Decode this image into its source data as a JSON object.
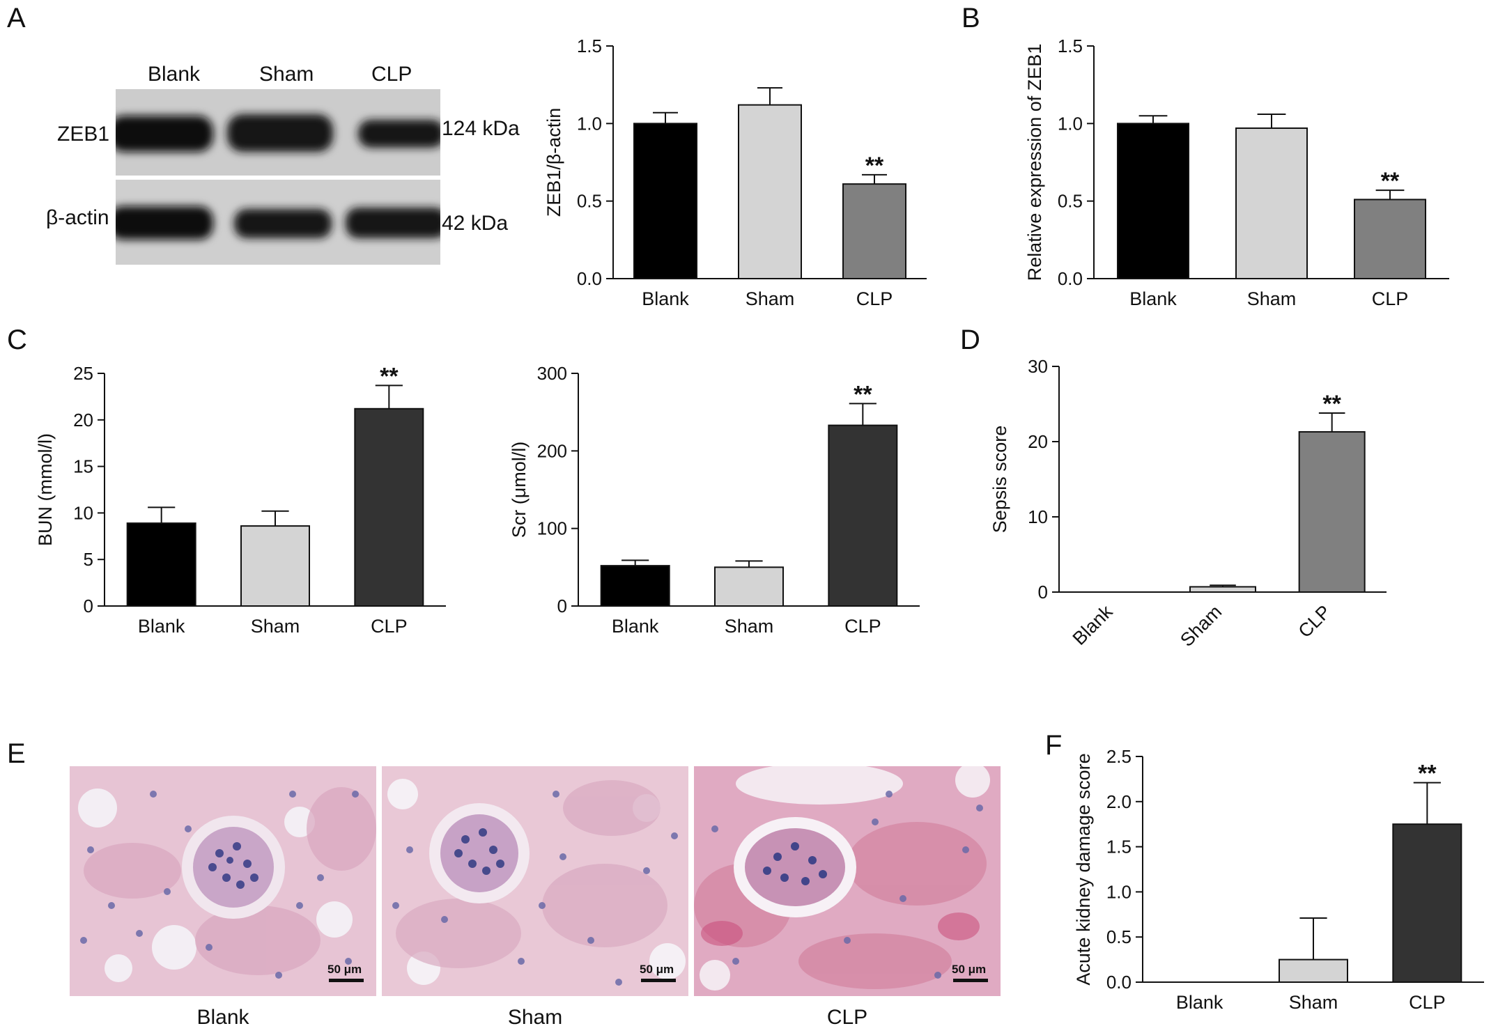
{
  "panels": {
    "A": "A",
    "B": "B",
    "C": "C",
    "D": "D",
    "E": "E",
    "F": "F"
  },
  "blot": {
    "lanes": [
      "Blank",
      "Sham",
      "CLP"
    ],
    "rows": [
      {
        "protein": "ZEB1",
        "size": "124 kDa"
      },
      {
        "protein": "β-actin",
        "size": "42 kDa"
      }
    ]
  },
  "micrographs": {
    "labels": [
      "Blank",
      "Sham",
      "CLP"
    ],
    "scale_bar": "50 μm"
  },
  "colors": {
    "black": "#000000",
    "light_gray": "#d4d4d4",
    "mid_gray": "#808080",
    "dark_gray": "#333333"
  },
  "chart_data": [
    {
      "id": "A-quant",
      "type": "bar",
      "categories": [
        "Blank",
        "Sham",
        "CLP"
      ],
      "values": [
        1.0,
        1.12,
        0.61
      ],
      "errors": [
        0.07,
        0.11,
        0.06
      ],
      "annotations": [
        "",
        "",
        "**"
      ],
      "bar_colors": [
        "#000000",
        "#d4d4d4",
        "#808080"
      ],
      "ylabel": "ZEB1/β-actin",
      "ylim": [
        0,
        1.5
      ],
      "yticks": [
        0.0,
        0.5,
        1.0,
        1.5
      ],
      "ytick_labels": [
        "0.0",
        "0.5",
        "1.0",
        "1.5"
      ]
    },
    {
      "id": "B",
      "type": "bar",
      "categories": [
        "Blank",
        "Sham",
        "CLP"
      ],
      "values": [
        1.0,
        0.97,
        0.51
      ],
      "errors": [
        0.05,
        0.09,
        0.06
      ],
      "annotations": [
        "",
        "",
        "**"
      ],
      "bar_colors": [
        "#000000",
        "#d4d4d4",
        "#808080"
      ],
      "ylabel": "Relative expression of ZEB1",
      "ylim": [
        0,
        1.5
      ],
      "yticks": [
        0.0,
        0.5,
        1.0,
        1.5
      ],
      "ytick_labels": [
        "0.0",
        "0.5",
        "1.0",
        "1.5"
      ]
    },
    {
      "id": "C-BUN",
      "type": "bar",
      "categories": [
        "Blank",
        "Sham",
        "CLP"
      ],
      "values": [
        8.9,
        8.6,
        21.2
      ],
      "errors": [
        1.7,
        1.6,
        2.5
      ],
      "annotations": [
        "",
        "",
        "**"
      ],
      "bar_colors": [
        "#000000",
        "#d4d4d4",
        "#333333"
      ],
      "ylabel": "BUN (mmol/l)",
      "ylim": [
        0,
        25
      ],
      "yticks": [
        0,
        5,
        10,
        15,
        20,
        25
      ],
      "ytick_labels": [
        "0",
        "5",
        "10",
        "15",
        "20",
        "25"
      ]
    },
    {
      "id": "C-Scr",
      "type": "bar",
      "categories": [
        "Blank",
        "Sham",
        "CLP"
      ],
      "values": [
        52,
        50,
        233
      ],
      "errors": [
        7,
        8,
        28
      ],
      "annotations": [
        "",
        "",
        "**"
      ],
      "bar_colors": [
        "#000000",
        "#d4d4d4",
        "#333333"
      ],
      "ylabel": "Scr (μmol/l)",
      "ylim": [
        0,
        300
      ],
      "yticks": [
        0,
        100,
        200,
        300
      ],
      "ytick_labels": [
        "0",
        "100",
        "200",
        "300"
      ]
    },
    {
      "id": "D",
      "type": "bar",
      "categories": [
        "Blank",
        "Sham",
        "CLP"
      ],
      "values": [
        0,
        0.7,
        21.3
      ],
      "errors": [
        0,
        0.2,
        2.5
      ],
      "annotations": [
        "",
        "",
        "**"
      ],
      "bar_colors": [
        "#000000",
        "#d4d4d4",
        "#808080"
      ],
      "ylabel": "Sepsis score",
      "ylim": [
        0,
        30
      ],
      "yticks": [
        0,
        10,
        20,
        30
      ],
      "ytick_labels": [
        "0",
        "10",
        "20",
        "30"
      ],
      "rotate_xticks": true
    },
    {
      "id": "F",
      "type": "bar",
      "categories": [
        "Blank",
        "Sham",
        "CLP"
      ],
      "values": [
        0,
        0.25,
        1.75
      ],
      "errors": [
        0,
        0.46,
        0.46
      ],
      "annotations": [
        "",
        "",
        "**"
      ],
      "bar_colors": [
        "#000000",
        "#d4d4d4",
        "#333333"
      ],
      "ylabel": "Acute kidney damage score",
      "ylim": [
        0,
        2.5
      ],
      "yticks": [
        0.0,
        0.5,
        1.0,
        1.5,
        2.0,
        2.5
      ],
      "ytick_labels": [
        "0.0",
        "0.5",
        "1.0",
        "1.5",
        "2.0",
        "2.5"
      ]
    }
  ]
}
